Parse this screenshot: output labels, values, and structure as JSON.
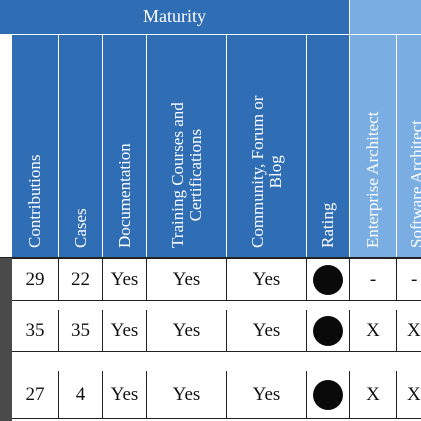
{
  "group_header": {
    "label": "Maturity"
  },
  "columns": [
    {
      "label": "Contributions"
    },
    {
      "label": "Cases"
    },
    {
      "label": "Documentation"
    },
    {
      "label": "Training Courses and\nCertifications"
    },
    {
      "label": "Community, Forum or\nBlog"
    },
    {
      "label": "Rating"
    },
    {
      "label": "Enterprise Architect"
    },
    {
      "label": "Software Architect"
    }
  ],
  "rows": [
    {
      "contributions": "29",
      "cases": "22",
      "documentation": "Yes",
      "training": "Yes",
      "community": "Yes",
      "rating": "filled-circle",
      "enterprise_architect": "-",
      "software_architect": "-"
    },
    {
      "contributions": "35",
      "cases": "35",
      "documentation": "Yes",
      "training": "Yes",
      "community": "Yes",
      "rating": "filled-circle",
      "enterprise_architect": "X",
      "software_architect": "X"
    },
    {
      "contributions": "27",
      "cases": "4",
      "documentation": "Yes",
      "training": "Yes",
      "community": "Yes",
      "rating": "filled-circle",
      "enterprise_architect": "X",
      "software_architect": "X"
    }
  ],
  "colors": {
    "header_blue": "#2f6db5",
    "header_light_blue": "#7aaee2",
    "row_edge": "#4a4a4a"
  }
}
